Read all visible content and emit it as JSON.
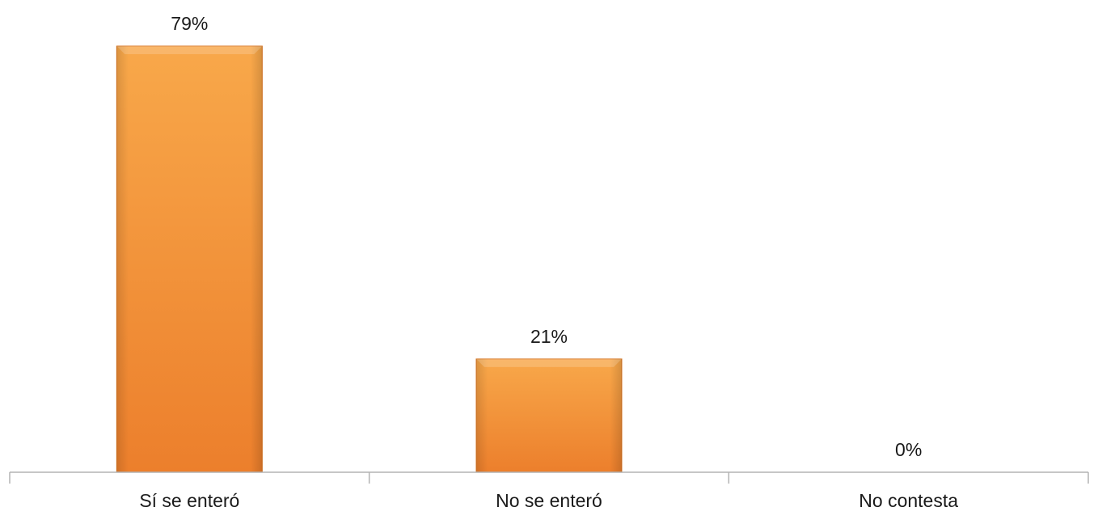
{
  "chart_data": {
    "type": "bar",
    "categories": [
      "Sí se enteró",
      "No se enteró",
      "No contesta"
    ],
    "values": [
      79,
      21,
      0
    ],
    "data_labels": [
      "79%",
      "21%",
      "0%"
    ],
    "ylim": [
      0,
      79
    ],
    "grid": false,
    "legend": "none",
    "colors": {
      "bar_light": "#f8a84a",
      "bar_dark": "#ec7f2c",
      "bar_edge": "#d8731f",
      "axis": "#b3b3b3"
    }
  }
}
